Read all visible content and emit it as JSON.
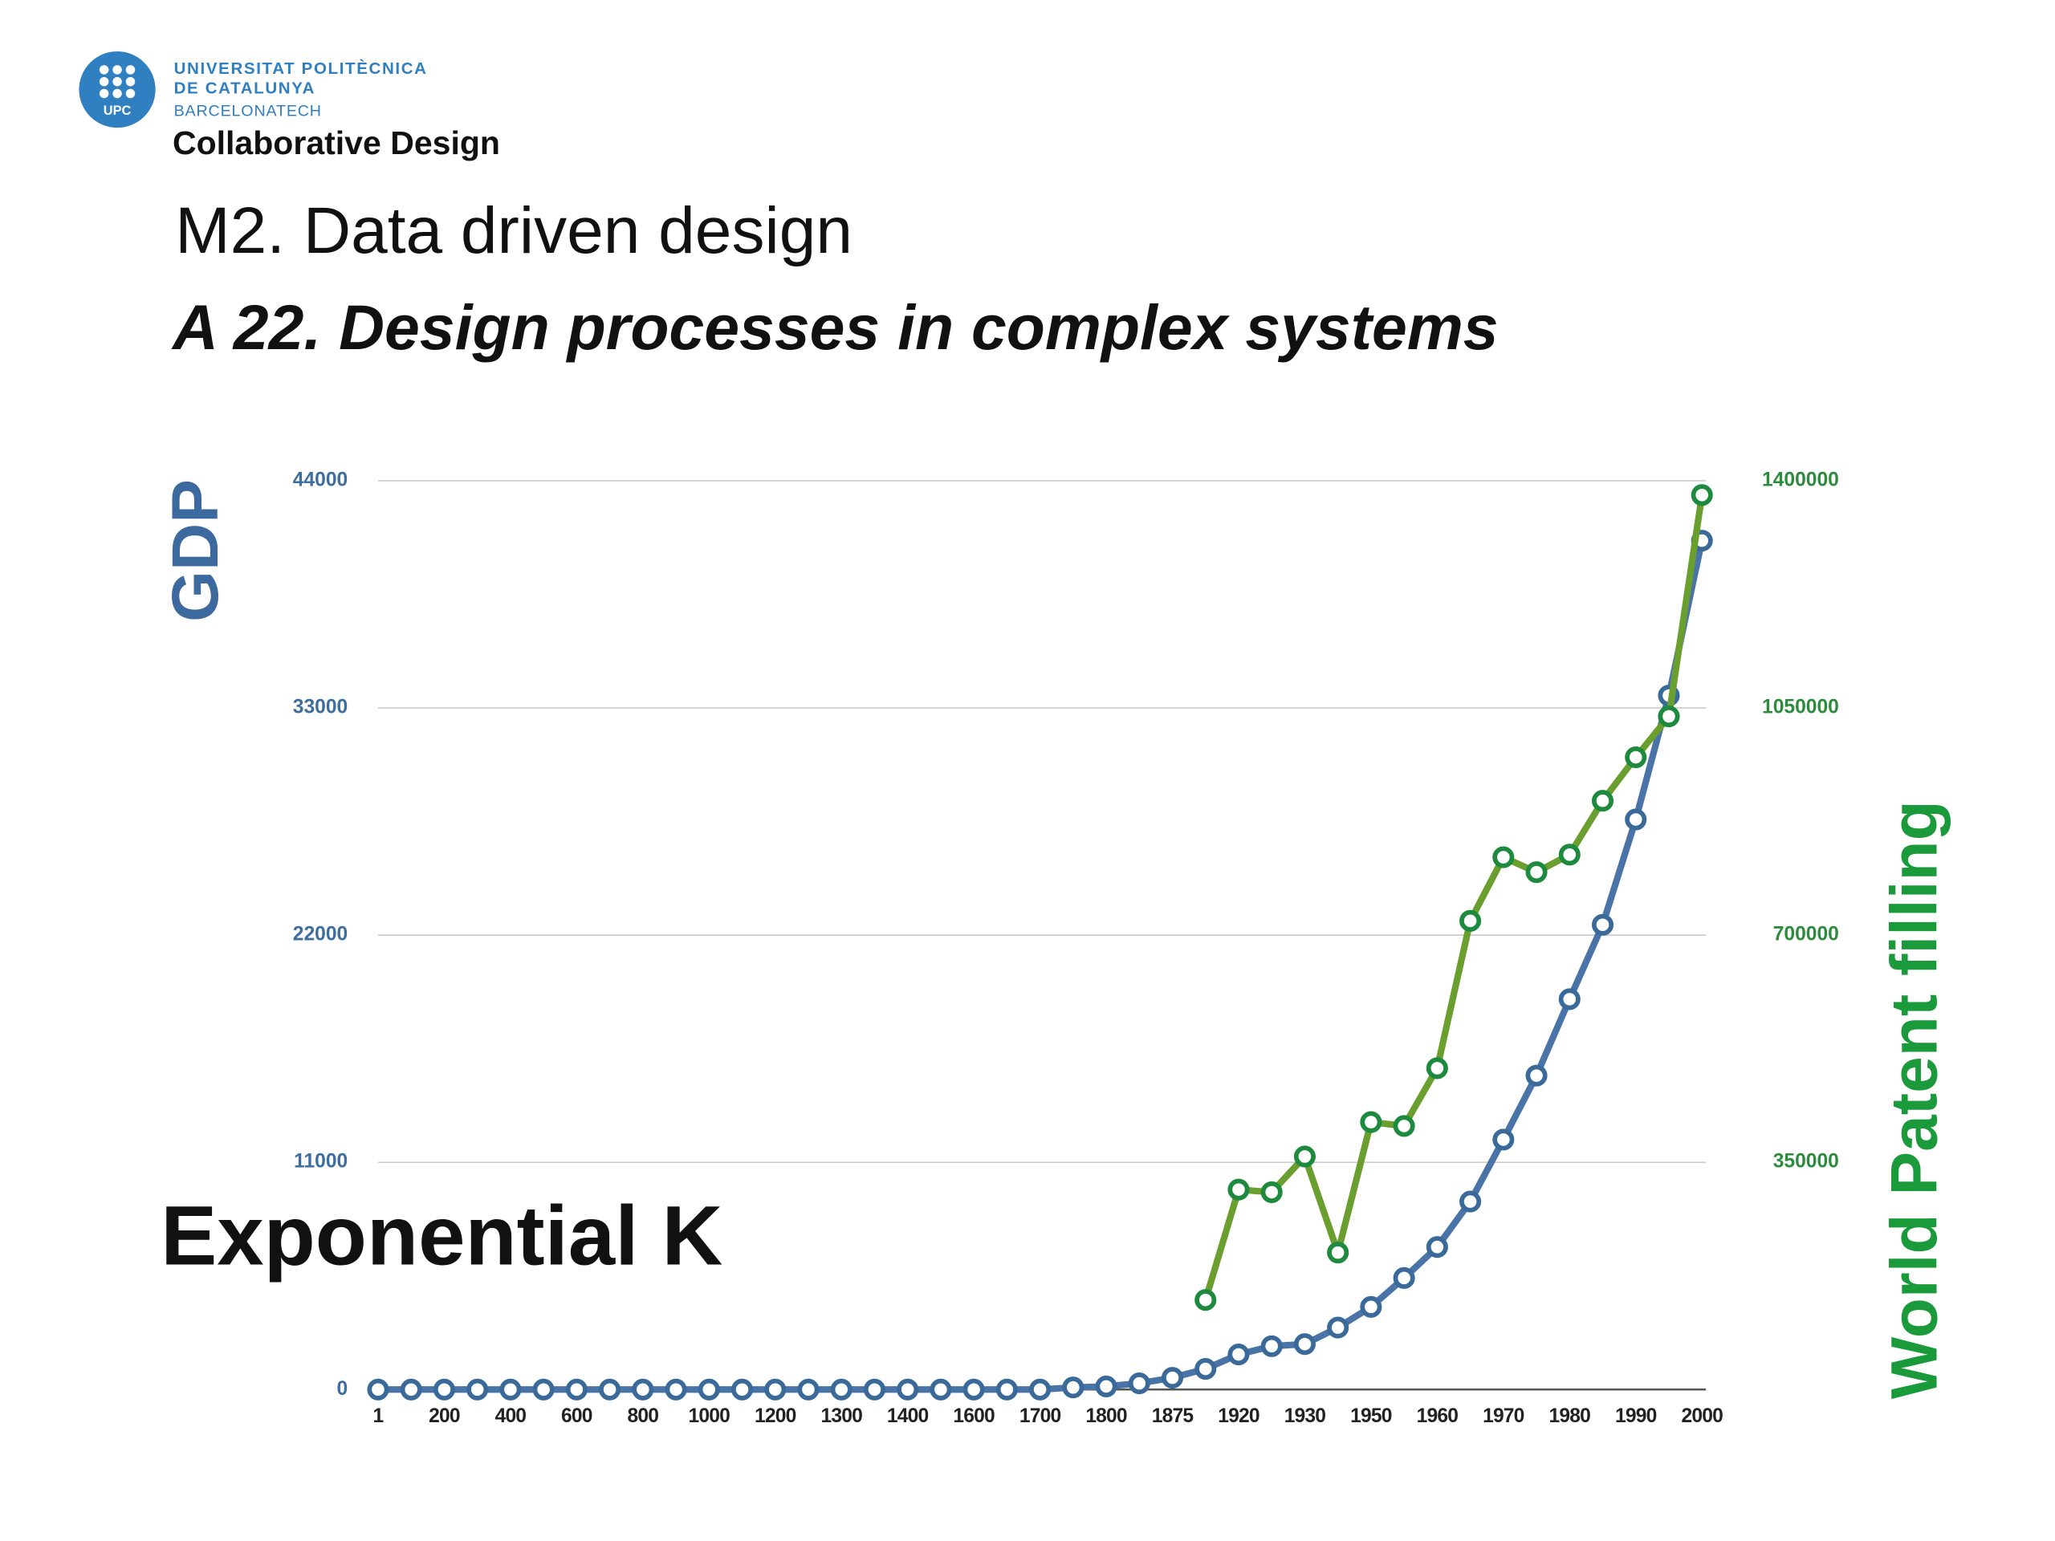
{
  "header": {
    "logo_mark": "UPC",
    "logo_line1": "UNIVERSITAT POLITÈCNICA",
    "logo_line2": "DE CATALUNYA",
    "logo_line3": "BARCELONATECH",
    "course": "Collaborative Design",
    "title": "M2. Data driven design",
    "subtitle": "A 22. Design processes in complex systems"
  },
  "chart_data": {
    "type": "line",
    "annotation": "Exponential K",
    "y_label": "GDP",
    "y2_label": "World Patent filling",
    "categories": [
      "1",
      null,
      "200",
      null,
      "400",
      null,
      "600",
      null,
      "800",
      null,
      "1000",
      null,
      "1200",
      null,
      "1300",
      null,
      "1400",
      null,
      "1600",
      null,
      "1700",
      null,
      "1800",
      null,
      "1875",
      null,
      "1920",
      null,
      "1930",
      null,
      "1950",
      null,
      "1960",
      null,
      "1970",
      null,
      "1980",
      null,
      "1990",
      null,
      "2000"
    ],
    "series": [
      {
        "color": "#4a74a8",
        "marker_color": "#3a6a9a",
        "values": [
          0,
          0,
          0,
          0,
          0,
          0,
          0,
          0,
          0,
          0,
          0,
          0,
          0,
          0,
          0,
          0,
          0,
          0,
          0,
          0,
          0,
          100,
          150,
          300,
          570,
          1000,
          1700,
          2100,
          2200,
          3000,
          4000,
          5400,
          6900,
          9100,
          12100,
          15200,
          18900,
          22500,
          27600,
          33600,
          41100
        ]
      },
      {
        "color": "#6a9e2e",
        "marker_color": "#1e8a3e",
        "axis": "y2",
        "values": [
          null,
          null,
          null,
          null,
          null,
          null,
          null,
          null,
          null,
          null,
          null,
          null,
          null,
          null,
          null,
          null,
          null,
          null,
          null,
          null,
          null,
          null,
          null,
          null,
          null,
          138000,
          308000,
          304000,
          359000,
          211000,
          412000,
          406000,
          495000,
          722000,
          820000,
          797000,
          824000,
          907000,
          974000,
          1037000,
          1378000
        ]
      }
    ],
    "ylim": [
      0,
      44000
    ],
    "yticks": [
      0,
      11000,
      22000,
      33000,
      44000
    ],
    "y2lim": [
      0,
      1400000
    ],
    "y2ticks": [
      350000,
      700000,
      1050000,
      1400000
    ],
    "grid": true,
    "y_color": "#3d6e9e",
    "y2_color": "#2e8b3e"
  }
}
